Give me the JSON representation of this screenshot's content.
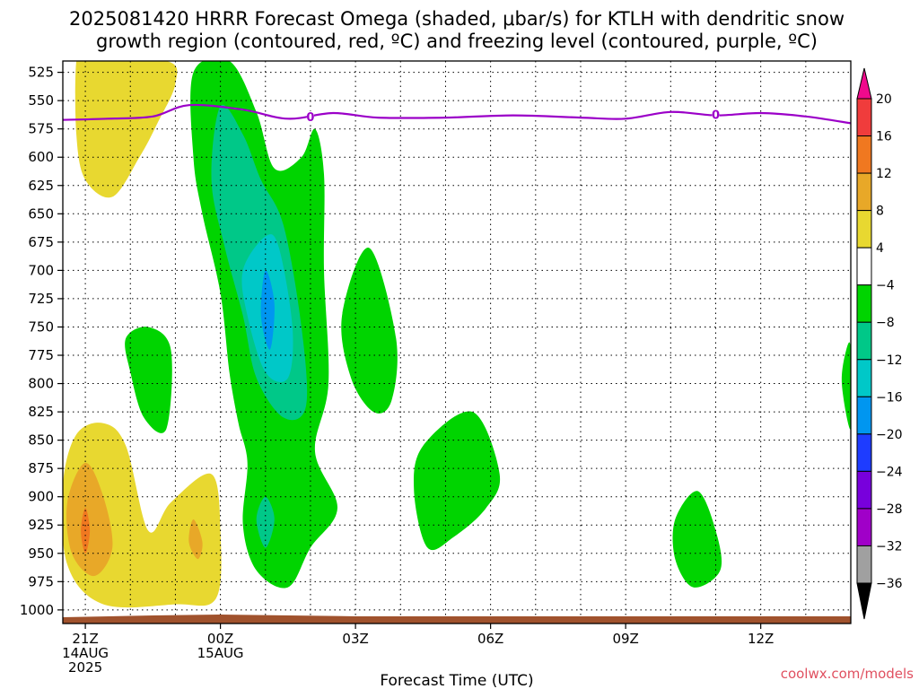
{
  "chart_data": {
    "type": "heatmap",
    "title_line1": "2025081420 HRRR Forecast Omega (shaded, μbar/s) for KTLH with dendritic snow",
    "title_line2": "growth region (contoured, red, ºC) and freezing level (contoured, purple, ºC)",
    "xlabel": "Forecast Time (UTC)",
    "credit": "coolwx.com/models",
    "x_range_hours": [
      -1.5,
      16.0
    ],
    "x_ticks": [
      {
        "h": -1.0,
        "lines": [
          "21Z",
          "14AUG",
          "2025"
        ]
      },
      {
        "h": 2.0,
        "lines": [
          "00Z",
          "15AUG"
        ]
      },
      {
        "h": 5.0,
        "lines": [
          "03Z"
        ]
      },
      {
        "h": 8.0,
        "lines": [
          "06Z"
        ]
      },
      {
        "h": 11.0,
        "lines": [
          "09Z"
        ]
      },
      {
        "h": 14.0,
        "lines": [
          "12Z"
        ]
      }
    ],
    "y_ticks": [
      525,
      550,
      575,
      600,
      625,
      650,
      675,
      700,
      725,
      750,
      775,
      800,
      825,
      850,
      875,
      900,
      925,
      950,
      975,
      1000
    ],
    "y_range_hpa": [
      515,
      1012
    ],
    "colorbar_labels": [
      "20",
      "16",
      "12",
      "8",
      "4",
      "−4",
      "−8",
      "−12",
      "−16",
      "−20",
      "−24",
      "−28",
      "−32",
      "−36"
    ],
    "colorbar_colors": [
      "#f00a8c",
      "#f03c3c",
      "#f07820",
      "#e8a828",
      "#e8d830",
      "#ffffff",
      "#00d400",
      "#00c888",
      "#00c8c8",
      "#0096f0",
      "#1e3cff",
      "#7800dc",
      "#a000c8",
      "#a0a0a0",
      "#000000"
    ],
    "freezing_level_label": "0",
    "freezing_level": [
      {
        "h": -1.5,
        "p": 567
      },
      {
        "h": -0.5,
        "p": 566
      },
      {
        "h": 0.5,
        "p": 564
      },
      {
        "h": 1.3,
        "p": 554
      },
      {
        "h": 2.5,
        "p": 558
      },
      {
        "h": 3.5,
        "p": 566
      },
      {
        "h": 4.5,
        "p": 561
      },
      {
        "h": 5.5,
        "p": 565
      },
      {
        "h": 7.0,
        "p": 565
      },
      {
        "h": 8.5,
        "p": 563
      },
      {
        "h": 10.0,
        "p": 565
      },
      {
        "h": 11.0,
        "p": 566
      },
      {
        "h": 12.0,
        "p": 560
      },
      {
        "h": 13.0,
        "p": 563
      },
      {
        "h": 14.0,
        "p": 561
      },
      {
        "h": 15.0,
        "p": 564
      },
      {
        "h": 16.0,
        "p": 570
      }
    ],
    "freezing_level_markers": [
      {
        "h": 4.0,
        "p": 564
      },
      {
        "h": 13.0,
        "p": 562
      }
    ],
    "omega_regions": [
      {
        "name": "upper-upward",
        "color": "#e8d830",
        "points": [
          [
            -1.0,
            515
          ],
          [
            0.8,
            515
          ],
          [
            1.0,
            535
          ],
          [
            0.6,
            570
          ],
          [
            0.2,
            600
          ],
          [
            -0.4,
            635
          ],
          [
            -1.0,
            620
          ],
          [
            -1.2,
            580
          ],
          [
            -1.2,
            515
          ]
        ]
      },
      {
        "name": "lower-upward-west",
        "color": "#e8d830",
        "points": [
          [
            -0.6,
            835
          ],
          [
            -0.1,
            855
          ],
          [
            0.4,
            930
          ],
          [
            0.9,
            905
          ],
          [
            1.8,
            880
          ],
          [
            2.0,
            930
          ],
          [
            1.9,
            990
          ],
          [
            1.0,
            995
          ],
          [
            -0.6,
            995
          ],
          [
            -1.4,
            960
          ],
          [
            -1.5,
            890
          ],
          [
            -1.2,
            845
          ]
        ]
      },
      {
        "name": "lower-upward-orange",
        "color": "#e8a828",
        "points": [
          [
            -1.0,
            870
          ],
          [
            -0.6,
            900
          ],
          [
            -0.4,
            945
          ],
          [
            -0.8,
            970
          ],
          [
            -1.3,
            950
          ],
          [
            -1.4,
            905
          ]
        ]
      },
      {
        "name": "lower-upward-core",
        "color": "#f07820",
        "points": [
          [
            -1.0,
            910
          ],
          [
            -0.9,
            930
          ],
          [
            -1.0,
            950
          ],
          [
            -1.1,
            930
          ]
        ]
      },
      {
        "name": "lower-upward-orange-east",
        "color": "#e8a828",
        "points": [
          [
            1.4,
            920
          ],
          [
            1.6,
            940
          ],
          [
            1.5,
            955
          ],
          [
            1.3,
            940
          ]
        ]
      },
      {
        "name": "main-downward",
        "color": "#00d400",
        "points": [
          [
            1.4,
            525
          ],
          [
            2.2,
            515
          ],
          [
            2.8,
            560
          ],
          [
            3.2,
            610
          ],
          [
            3.8,
            600
          ],
          [
            4.1,
            575
          ],
          [
            4.3,
            615
          ],
          [
            4.3,
            700
          ],
          [
            4.4,
            800
          ],
          [
            4.1,
            860
          ],
          [
            4.6,
            910
          ],
          [
            4.0,
            945
          ],
          [
            3.5,
            980
          ],
          [
            2.8,
            965
          ],
          [
            2.5,
            925
          ],
          [
            2.6,
            870
          ],
          [
            2.4,
            835
          ],
          [
            2.2,
            790
          ],
          [
            2.0,
            720
          ],
          [
            1.6,
            650
          ],
          [
            1.4,
            600
          ]
        ]
      },
      {
        "name": "main-downward-teal",
        "color": "#00c888",
        "points": [
          [
            2.0,
            555
          ],
          [
            2.5,
            580
          ],
          [
            2.9,
            620
          ],
          [
            3.4,
            660
          ],
          [
            3.8,
            750
          ],
          [
            3.9,
            820
          ],
          [
            3.4,
            830
          ],
          [
            2.8,
            795
          ],
          [
            2.5,
            740
          ],
          [
            2.1,
            680
          ],
          [
            1.8,
            620
          ]
        ]
      },
      {
        "name": "main-downward-cyan",
        "color": "#00c8c8",
        "points": [
          [
            3.0,
            670
          ],
          [
            3.3,
            680
          ],
          [
            3.6,
            750
          ],
          [
            3.5,
            795
          ],
          [
            3.0,
            790
          ],
          [
            2.6,
            740
          ],
          [
            2.5,
            700
          ]
        ]
      },
      {
        "name": "main-downward-blue",
        "color": "#0096f0",
        "points": [
          [
            3.0,
            700
          ],
          [
            3.2,
            730
          ],
          [
            3.1,
            770
          ],
          [
            2.9,
            740
          ]
        ]
      },
      {
        "name": "low-downward-teal",
        "color": "#00c888",
        "points": [
          [
            3.0,
            900
          ],
          [
            3.2,
            920
          ],
          [
            3.0,
            945
          ],
          [
            2.8,
            920
          ]
        ]
      },
      {
        "name": "mid-downward-a",
        "color": "#00d400",
        "points": [
          [
            0.4,
            750
          ],
          [
            0.9,
            770
          ],
          [
            0.8,
            840
          ],
          [
            0.3,
            830
          ],
          [
            0.0,
            790
          ],
          [
            -0.1,
            760
          ]
        ]
      },
      {
        "name": "mid-downward-b",
        "color": "#00d400",
        "points": [
          [
            5.3,
            680
          ],
          [
            5.9,
            760
          ],
          [
            5.8,
            815
          ],
          [
            5.4,
            825
          ],
          [
            4.9,
            795
          ],
          [
            4.7,
            740
          ]
        ]
      },
      {
        "name": "mid-downward-c",
        "color": "#00d400",
        "points": [
          [
            7.6,
            825
          ],
          [
            8.2,
            880
          ],
          [
            7.9,
            910
          ],
          [
            7.2,
            935
          ],
          [
            6.6,
            945
          ],
          [
            6.3,
            895
          ],
          [
            6.5,
            855
          ]
        ]
      },
      {
        "name": "late-downward",
        "color": "#00d400",
        "points": [
          [
            12.6,
            895
          ],
          [
            13.0,
            930
          ],
          [
            13.1,
            965
          ],
          [
            12.5,
            980
          ],
          [
            12.1,
            955
          ],
          [
            12.1,
            920
          ]
        ]
      },
      {
        "name": "edge-downward",
        "color": "#00d400",
        "points": [
          [
            15.9,
            770
          ],
          [
            16.0,
            770
          ],
          [
            16.0,
            840
          ],
          [
            15.8,
            800
          ]
        ]
      }
    ],
    "terrain_color": "#a0522d"
  }
}
